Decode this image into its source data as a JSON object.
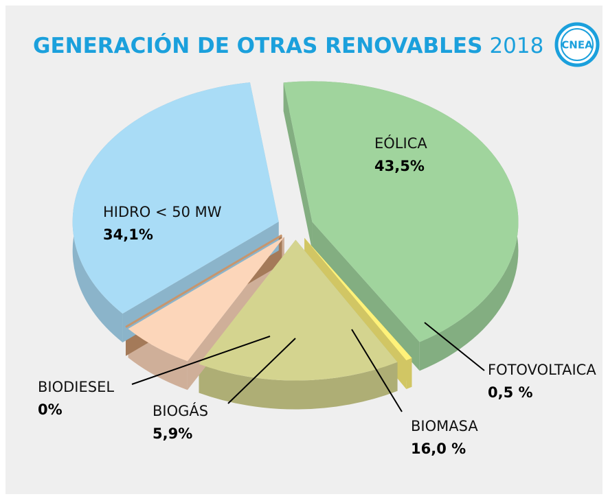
{
  "chart_data": {
    "type": "pie",
    "title": "GENERACIÓN DE OTRAS RENOVABLES",
    "subtitle": "2018",
    "logo": "CNEA",
    "categories": [
      "EÓLICA",
      "FOTOVOLTAICA",
      "BIOMASA",
      "BIOGÁS",
      "BIODIESEL",
      "HIDRO < 50 MW"
    ],
    "values": [
      43.5,
      0.5,
      16.0,
      5.9,
      0,
      34.1
    ],
    "value_labels": [
      "43,5%",
      "0,5 %",
      "16,0 %",
      "5,9%",
      "0%",
      "34,1%"
    ],
    "colors": [
      "#a0d49d",
      "#fff27a",
      "#d4d48f",
      "#fcd6ba",
      "#c8956c",
      "#a9dcf6"
    ]
  }
}
